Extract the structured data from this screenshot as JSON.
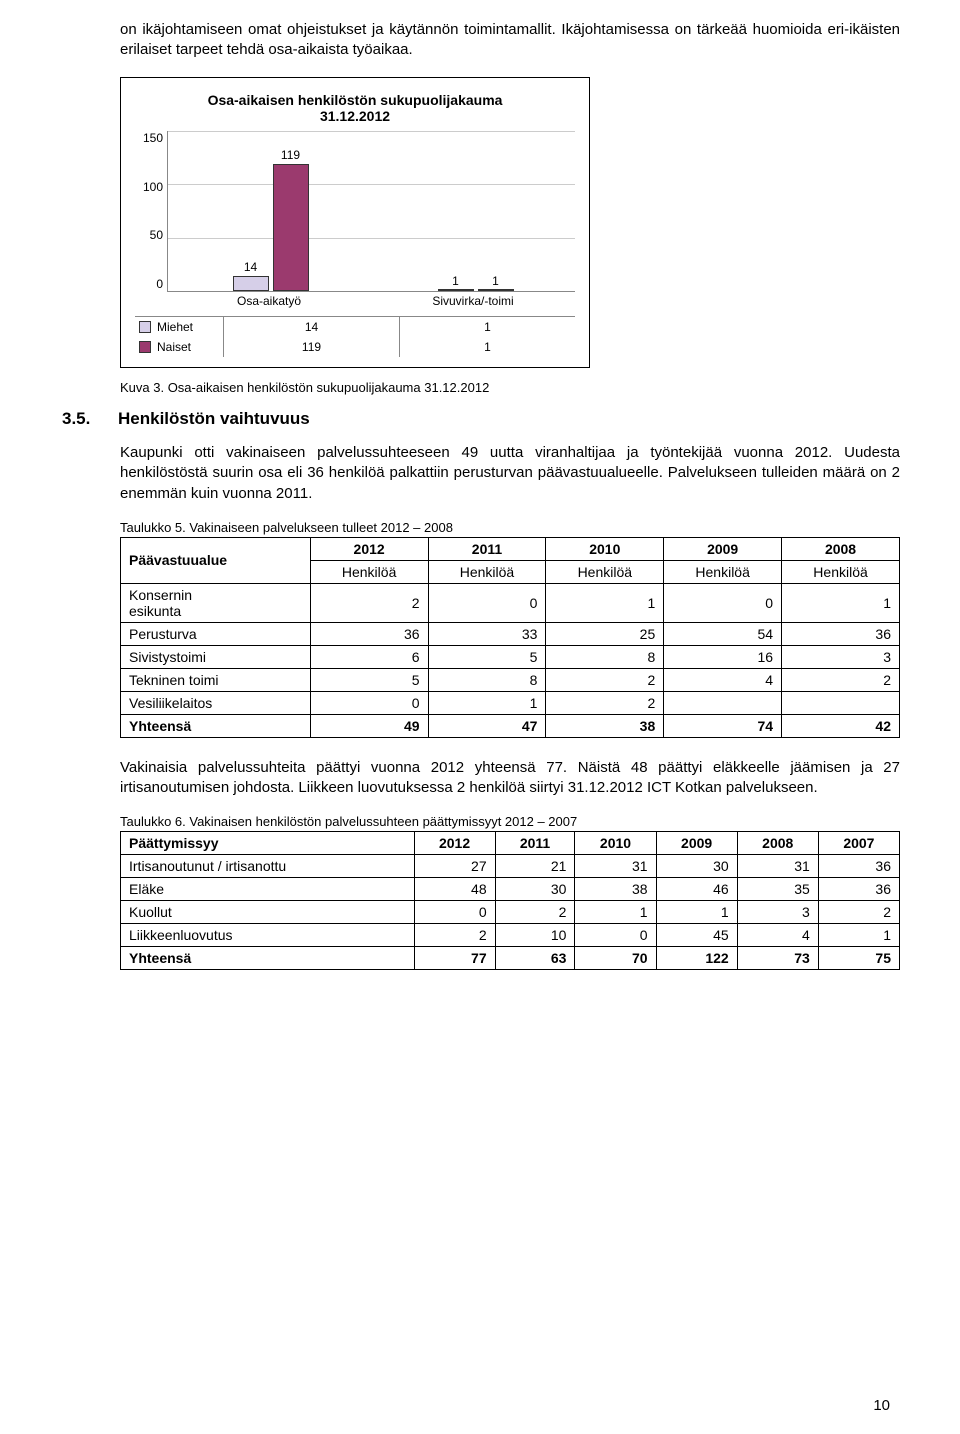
{
  "intro_para": "on ikäjohtamiseen omat ohjeistukset ja käytännön toimintamallit. Ikäjohtamisessa on tärkeää huomioida eri-ikäisten erilaiset tarpeet tehdä osa-aikaista työaikaa.",
  "chart": {
    "type": "bar",
    "title_line1": "Osa-aikaisen henkilöstön sukupuolijakauma",
    "title_line2": "31.12.2012",
    "y_max": 150,
    "y_ticks": [
      150,
      100,
      50,
      0
    ],
    "categories": [
      "Osa-aikatyö",
      "Sivuvirka/-toimi"
    ],
    "series": [
      {
        "name": "Miehet",
        "color": "#d6cfe8",
        "values": [
          14,
          1
        ]
      },
      {
        "name": "Naiset",
        "color": "#9b3a6e",
        "values": [
          119,
          1
        ]
      }
    ],
    "grid_color": "#cccccc",
    "axis_color": "#888888"
  },
  "kuva3_caption": "Kuva 3. Osa-aikaisen henkilöstön sukupuolijakauma 31.12.2012",
  "section": {
    "num": "3.5.",
    "title": "Henkilöstön vaihtuvuus"
  },
  "para2": "Kaupunki otti vakinaiseen palvelussuhteeseen 49 uutta viranhaltijaa ja työntekijää vuonna 2012. Uudesta henkilöstöstä suurin osa eli 36 henkilöä palkattiin perusturvan päävastuualueelle. Palvelukseen tulleiden määrä on 2 enemmän kuin vuonna 2011.",
  "table5": {
    "caption": "Taulukko 5. Vakinaiseen palvelukseen tulleet 2012 – 2008",
    "col0": "Päävastuualue",
    "years": [
      "2012",
      "2011",
      "2010",
      "2009",
      "2008"
    ],
    "sublabel": "Henkilöä",
    "rows": [
      {
        "label": "Konsernin\nesikunta",
        "vals": [
          "2",
          "0",
          "1",
          "0",
          "1"
        ]
      },
      {
        "label": "Perusturva",
        "vals": [
          "36",
          "33",
          "25",
          "54",
          "36"
        ]
      },
      {
        "label": "Sivistystoimi",
        "vals": [
          "6",
          "5",
          "8",
          "16",
          "3"
        ]
      },
      {
        "label": "Tekninen toimi",
        "vals": [
          "5",
          "8",
          "2",
          "4",
          "2"
        ]
      },
      {
        "label": "Vesiliikelaitos",
        "vals": [
          "0",
          "1",
          "2",
          "",
          ""
        ]
      }
    ],
    "total": {
      "label": "Yhteensä",
      "vals": [
        "49",
        "47",
        "38",
        "74",
        "42"
      ]
    }
  },
  "para3": "Vakinaisia palvelussuhteita päättyi vuonna 2012 yhteensä 77. Näistä 48 päättyi eläkkeelle jäämisen ja 27 irtisanoutumisen johdosta. Liikkeen luovutuksessa 2 henkilöä siirtyi 31.12.2012 ICT Kotkan palvelukseen.",
  "table6": {
    "caption": "Taulukko 6. Vakinaisen henkilöstön palvelussuhteen päättymissyyt 2012 – 2007",
    "col0": "Päättymissyy",
    "years": [
      "2012",
      "2011",
      "2010",
      "2009",
      "2008",
      "2007"
    ],
    "rows": [
      {
        "label": "Irtisanoutunut / irtisanottu",
        "vals": [
          "27",
          "21",
          "31",
          "30",
          "31",
          "36"
        ]
      },
      {
        "label": "Eläke",
        "vals": [
          "48",
          "30",
          "38",
          "46",
          "35",
          "36"
        ]
      },
      {
        "label": "Kuollut",
        "vals": [
          "0",
          "2",
          "1",
          "1",
          "3",
          "2"
        ]
      },
      {
        "label": "Liikkeenluovutus",
        "vals": [
          "2",
          "10",
          "0",
          "45",
          "4",
          "1"
        ]
      }
    ],
    "total": {
      "label": "Yhteensä",
      "vals": [
        "77",
        "63",
        "70",
        "122",
        "73",
        "75"
      ]
    }
  },
  "page_number": "10"
}
